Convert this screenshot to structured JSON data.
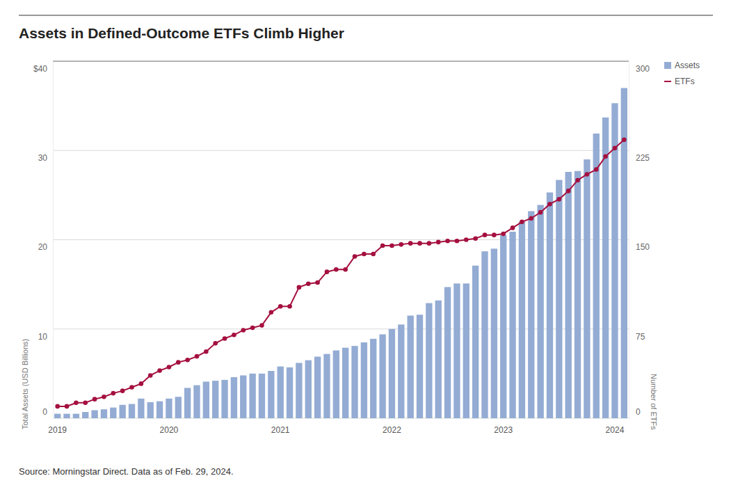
{
  "chart_data": {
    "type": "bar",
    "title": "Assets in Defined-Outcome ETFs Climb Higher",
    "y_label": "Total Assets (USD Billions)",
    "y2_label": "Number of ETFs",
    "source": "Source: Morningstar Direct. Data as of Feb. 29, 2024.",
    "categories": [
      "2019",
      null,
      null,
      null,
      null,
      null,
      null,
      null,
      null,
      null,
      null,
      null,
      "2020",
      null,
      null,
      null,
      null,
      null,
      null,
      null,
      null,
      null,
      null,
      null,
      "2021",
      null,
      null,
      null,
      null,
      null,
      null,
      null,
      null,
      null,
      null,
      null,
      "2022",
      null,
      null,
      null,
      null,
      null,
      null,
      null,
      null,
      null,
      null,
      null,
      "2023",
      null,
      null,
      null,
      null,
      null,
      null,
      null,
      null,
      null,
      null,
      null,
      "2024",
      null
    ],
    "series": [
      {
        "name": "Assets",
        "type": "bar",
        "color": "#94acd4",
        "values": [
          0.5,
          0.5,
          0.5,
          0.7,
          0.9,
          1.0,
          1.2,
          1.5,
          1.6,
          2.2,
          1.8,
          1.9,
          2.2,
          2.4,
          3.4,
          3.7,
          4.1,
          4.2,
          4.3,
          4.6,
          4.8,
          5.0,
          5.0,
          5.3,
          5.8,
          5.7,
          6.2,
          6.5,
          6.9,
          7.2,
          7.6,
          7.9,
          8.1,
          8.5,
          8.9,
          9.4,
          10.0,
          10.5,
          11.5,
          11.6,
          12.9,
          13.2,
          14.7,
          15.1,
          15.1,
          17.1,
          18.7,
          19.0,
          20.5,
          20.9,
          22.0,
          23.2,
          23.9,
          25.3,
          26.7,
          27.6,
          27.7,
          29.0,
          31.9,
          33.7,
          35.3,
          37.0
        ]
      },
      {
        "name": "ETFs",
        "type": "line",
        "color": "#a5103f",
        "marker": "circle",
        "axis": "y2",
        "values": [
          10,
          10,
          13,
          13,
          16,
          18,
          21,
          23,
          26,
          29,
          36,
          40,
          43,
          47,
          49,
          52,
          56,
          63,
          67,
          70,
          74,
          76,
          78,
          89,
          94,
          94,
          110,
          113,
          114,
          123,
          125,
          125,
          136,
          138,
          138,
          145,
          145,
          146,
          147,
          147,
          147,
          148,
          149,
          149,
          150,
          151,
          154,
          154,
          155,
          160,
          165,
          168,
          173,
          180,
          184,
          191,
          200,
          205,
          209,
          220,
          227,
          234
        ]
      }
    ],
    "ylim": [
      0,
      40
    ],
    "yticks": [
      0,
      10,
      20,
      30,
      {
        "value": 40,
        "label": "$40"
      }
    ],
    "y2lim": [
      0,
      300
    ],
    "y2ticks": [
      0,
      75,
      150,
      225,
      300
    ],
    "grid": true,
    "legend": "top-right"
  }
}
